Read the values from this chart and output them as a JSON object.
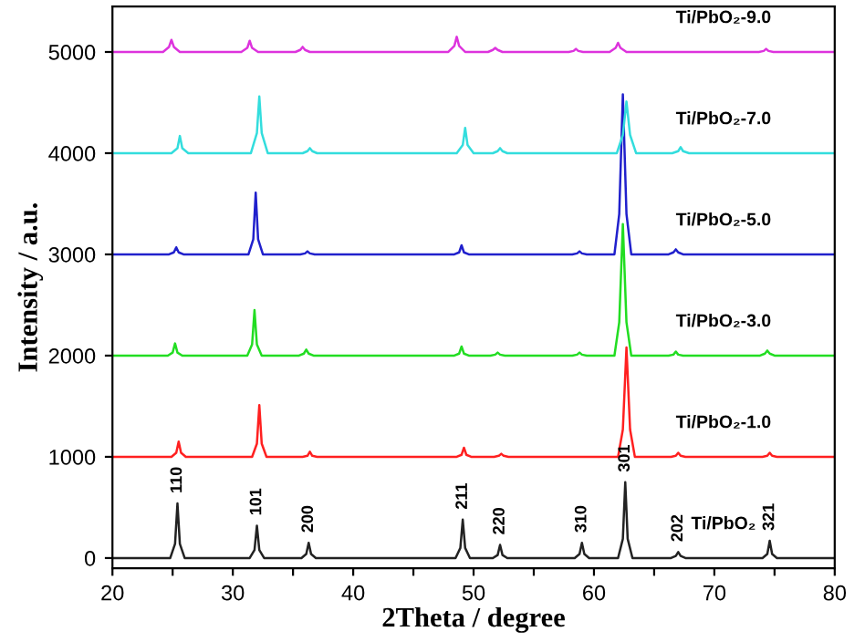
{
  "chart_data": {
    "type": "line",
    "xlabel": "2Theta / degree",
    "ylabel": "Intensity / a.u.",
    "xlim": [
      20,
      80
    ],
    "ylim": [
      -100,
      5450
    ],
    "xticks": [
      20,
      {
        "value": 25,
        "label": null
      },
      30,
      {
        "value": 35,
        "label": null
      },
      40,
      {
        "value": 45,
        "label": null
      },
      50,
      {
        "value": 55,
        "label": null
      },
      60,
      {
        "value": 65,
        "label": null
      },
      70,
      {
        "value": 75,
        "label": null
      },
      80
    ],
    "yticks": [
      0,
      1000,
      2000,
      3000,
      4000,
      5000
    ],
    "grid": false,
    "legend": false,
    "marker": "none",
    "line_style": "solid",
    "series": [
      {
        "name": "Ti/PbO₂",
        "color": "#222222",
        "x": [
          20,
          24.8,
          25.2,
          25.4,
          25.6,
          26.0,
          31.4,
          31.8,
          32.0,
          32.2,
          32.6,
          35.7,
          36.1,
          36.3,
          36.5,
          36.9,
          48.5,
          48.9,
          49.1,
          49.3,
          49.7,
          51.6,
          52.0,
          52.2,
          52.4,
          52.8,
          58.4,
          58.8,
          59.0,
          59.2,
          59.6,
          62.0,
          62.4,
          62.6,
          62.8,
          63.2,
          66.4,
          66.8,
          67.0,
          67.2,
          67.6,
          74.0,
          74.4,
          74.6,
          74.8,
          75.2,
          80
        ],
        "values": [
          0,
          0,
          140,
          540,
          140,
          0,
          0,
          80,
          320,
          80,
          0,
          0,
          40,
          150,
          40,
          0,
          0,
          100,
          380,
          100,
          0,
          0,
          30,
          130,
          30,
          0,
          0,
          40,
          150,
          40,
          0,
          0,
          190,
          750,
          190,
          0,
          0,
          20,
          60,
          20,
          0,
          0,
          40,
          170,
          40,
          0,
          0
        ]
      },
      {
        "name": "Ti/PbO₂-1.0",
        "color": "#ff2020",
        "x": [
          20,
          24.9,
          25.3,
          25.5,
          25.7,
          26.1,
          31.6,
          32.0,
          32.2,
          32.4,
          32.8,
          35.8,
          36.2,
          36.4,
          36.6,
          37.0,
          48.6,
          49.0,
          49.2,
          49.4,
          49.8,
          51.7,
          52.1,
          52.3,
          52.5,
          52.9,
          62.0,
          62.4,
          62.7,
          63.0,
          63.4,
          66.4,
          66.8,
          67.0,
          67.2,
          67.6,
          74.0,
          74.4,
          74.6,
          74.8,
          75.2,
          80
        ],
        "values": [
          1000,
          1000,
          1040,
          1150,
          1040,
          1000,
          1000,
          1130,
          1510,
          1130,
          1000,
          1000,
          1010,
          1050,
          1010,
          1000,
          1000,
          1020,
          1090,
          1020,
          1000,
          1000,
          1010,
          1030,
          1010,
          1000,
          1000,
          1270,
          2080,
          1270,
          1000,
          1000,
          1010,
          1040,
          1010,
          1000,
          1000,
          1010,
          1040,
          1010,
          1000,
          1000
        ]
      },
      {
        "name": "Ti/PbO₂-3.0",
        "color": "#22dd22",
        "x": [
          20,
          24.6,
          25.0,
          25.2,
          25.4,
          25.8,
          31.2,
          31.6,
          31.8,
          32.0,
          32.4,
          35.5,
          35.9,
          36.1,
          36.3,
          36.7,
          48.4,
          48.8,
          49.0,
          49.2,
          49.6,
          51.4,
          51.8,
          52.0,
          52.2,
          52.6,
          58.2,
          58.6,
          58.8,
          59.0,
          59.4,
          61.7,
          62.1,
          62.4,
          62.7,
          63.1,
          66.2,
          66.6,
          66.8,
          67.0,
          67.4,
          73.8,
          74.2,
          74.4,
          74.6,
          75.0,
          80
        ],
        "values": [
          2000,
          2000,
          2030,
          2120,
          2030,
          2000,
          2000,
          2110,
          2450,
          2110,
          2000,
          2000,
          2020,
          2060,
          2020,
          2000,
          2000,
          2020,
          2090,
          2020,
          2000,
          2000,
          2010,
          2030,
          2010,
          2000,
          2000,
          2010,
          2030,
          2010,
          2000,
          2000,
          2330,
          3300,
          2330,
          2000,
          2000,
          2010,
          2040,
          2010,
          2000,
          2000,
          2020,
          2050,
          2020,
          2000,
          2000
        ]
      },
      {
        "name": "Ti/PbO₂-5.0",
        "color": "#2020cc",
        "x": [
          20,
          24.7,
          25.1,
          25.3,
          25.5,
          25.9,
          31.3,
          31.7,
          31.9,
          32.1,
          32.5,
          35.6,
          36.0,
          36.2,
          36.4,
          36.8,
          48.4,
          48.8,
          49.0,
          49.2,
          49.6,
          58.2,
          58.6,
          58.8,
          59.0,
          59.4,
          61.7,
          62.1,
          62.4,
          62.7,
          63.1,
          66.2,
          66.6,
          66.8,
          67.0,
          67.4,
          80
        ],
        "values": [
          3000,
          3000,
          3020,
          3070,
          3020,
          3000,
          3000,
          3150,
          3610,
          3150,
          3000,
          3000,
          3010,
          3030,
          3010,
          3000,
          3000,
          3020,
          3090,
          3020,
          3000,
          3000,
          3010,
          3030,
          3010,
          3000,
          3000,
          3400,
          4580,
          3400,
          3000,
          3000,
          3020,
          3050,
          3020,
          3000,
          3000
        ]
      },
      {
        "name": "Ti/PbO₂-7.0",
        "color": "#33dddd",
        "x": [
          20,
          24.9,
          25.4,
          25.6,
          25.8,
          26.3,
          31.5,
          32.0,
          32.2,
          32.4,
          32.9,
          35.8,
          36.2,
          36.4,
          36.6,
          37.0,
          48.6,
          49.1,
          49.3,
          49.5,
          50.0,
          51.6,
          52.0,
          52.2,
          52.4,
          52.8,
          61.9,
          62.4,
          62.7,
          63.0,
          63.5,
          66.5,
          67.0,
          67.2,
          67.4,
          67.9,
          80
        ],
        "values": [
          4000,
          4000,
          4050,
          4170,
          4050,
          4000,
          4000,
          4200,
          4560,
          4200,
          4000,
          4000,
          4020,
          4050,
          4020,
          4000,
          4000,
          4080,
          4250,
          4080,
          4000,
          4000,
          4020,
          4050,
          4020,
          4000,
          4000,
          4180,
          4510,
          4180,
          4000,
          4000,
          4020,
          4060,
          4020,
          4000,
          4000
        ]
      },
      {
        "name": "Ti/PbO₂-9.0",
        "color": "#dd33dd",
        "x": [
          20,
          24.2,
          24.7,
          24.9,
          25.1,
          25.6,
          30.7,
          31.2,
          31.4,
          31.6,
          32.1,
          35.2,
          35.6,
          35.8,
          36.0,
          36.4,
          47.9,
          48.4,
          48.6,
          48.8,
          49.3,
          51.2,
          51.6,
          51.8,
          52.0,
          52.4,
          57.9,
          58.3,
          58.5,
          58.7,
          59.1,
          61.3,
          61.8,
          62.0,
          62.2,
          62.7,
          73.7,
          74.1,
          74.3,
          74.5,
          74.9,
          80
        ],
        "values": [
          5000,
          5000,
          5050,
          5120,
          5050,
          5000,
          5000,
          5040,
          5110,
          5040,
          5000,
          5000,
          5020,
          5050,
          5020,
          5000,
          5000,
          5060,
          5150,
          5060,
          5000,
          5000,
          5020,
          5040,
          5020,
          5000,
          5000,
          5010,
          5030,
          5010,
          5000,
          5000,
          5040,
          5090,
          5040,
          5000,
          5000,
          5010,
          5030,
          5010,
          5000,
          5000
        ]
      }
    ],
    "annotations": [
      {
        "text": "110",
        "x": 25.4,
        "y": 540
      },
      {
        "text": "101",
        "x": 32.0,
        "y": 320
      },
      {
        "text": "200",
        "x": 36.3,
        "y": 150
      },
      {
        "text": "211",
        "x": 49.1,
        "y": 380
      },
      {
        "text": "220",
        "x": 52.2,
        "y": 130
      },
      {
        "text": "310",
        "x": 59.0,
        "y": 150
      },
      {
        "text": "301",
        "x": 62.6,
        "y": 750
      },
      {
        "text": "202",
        "x": 67.0,
        "y": 60
      },
      {
        "text": "321",
        "x": 74.6,
        "y": 170
      }
    ]
  }
}
